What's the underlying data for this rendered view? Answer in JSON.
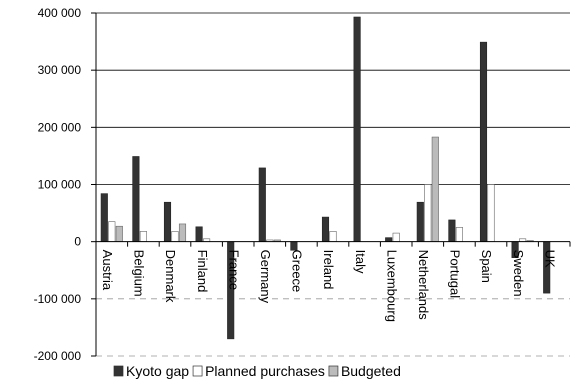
{
  "chart_data": {
    "type": "bar",
    "categories": [
      "Austria",
      "Belgium",
      "Denmark",
      "Finland",
      "France",
      "Germany",
      "Greece",
      "Ireland",
      "Italy",
      "Luxembourg",
      "Netherlands",
      "Portugal",
      "Spain",
      "Sweden",
      "UK"
    ],
    "series": [
      {
        "name": "Kyoto gap",
        "color": "#333333",
        "values": [
          84000,
          149000,
          69000,
          26000,
          -170000,
          129000,
          -15000,
          43000,
          393000,
          7000,
          69000,
          38000,
          349000,
          -28000,
          -90000
        ]
      },
      {
        "name": "Planned purchases",
        "color": "#ffffff",
        "values": [
          35000,
          18000,
          18000,
          5000,
          0,
          3000,
          0,
          18000,
          0,
          15000,
          100000,
          25000,
          100000,
          5000,
          0
        ]
      },
      {
        "name": "Budgeted",
        "color": "#bbbbbb",
        "values": [
          27000,
          0,
          31000,
          0,
          0,
          3000,
          0,
          0,
          0,
          0,
          183000,
          0,
          0,
          2000,
          0
        ]
      }
    ],
    "ylim": [
      -200000,
      400000
    ],
    "yticks": [
      -200000,
      -100000,
      0,
      100000,
      200000,
      300000,
      400000
    ],
    "ytick_labels": [
      "-200 000",
      "-100 000",
      "0",
      "100 000",
      "200 000",
      "300 000",
      "400 000"
    ],
    "grid": "horizontal",
    "legend_position": "bottom"
  }
}
